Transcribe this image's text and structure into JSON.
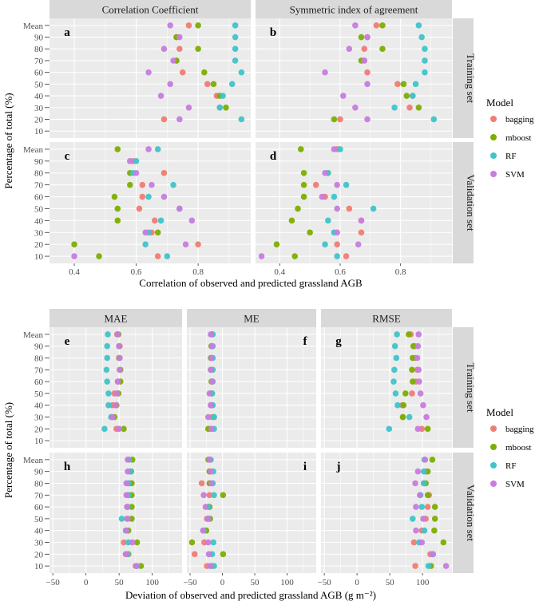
{
  "colors": {
    "bagging": "#F07C73",
    "mboost": "#7CAE00",
    "RF": "#3FC4C9",
    "SVM": "#C77CDE"
  },
  "legend": {
    "title": "Model",
    "items": [
      "bagging",
      "mboost",
      "RF",
      "SVM"
    ]
  },
  "chart_data": [
    {
      "type": "scatter",
      "name": "correlation",
      "xlabel": "Correlation of observed and predicted grassland AGB",
      "ylabel": "Percentage of total (%)",
      "xlim": [
        0.32,
        0.97
      ],
      "xticks": [
        0.4,
        0.6,
        0.8
      ],
      "xtick_labels": [
        "0.4",
        "0.6",
        "0.8"
      ],
      "categories": [
        "10",
        "20",
        "30",
        "40",
        "50",
        "60",
        "70",
        "80",
        "90",
        "Mean"
      ],
      "columns": [
        "Correlation Coefficient",
        "Symmetric index of agreement"
      ],
      "rows": [
        "Training set",
        "Validation set"
      ],
      "panels": [
        {
          "letter": "a",
          "col": 0,
          "row": 0,
          "letter_pos": "top-left",
          "series": [
            {
              "name": "bagging",
              "values": [
                null,
                0.69,
                0.87,
                0.86,
                0.83,
                0.75,
                0.73,
                0.74,
                0.73,
                0.77
              ]
            },
            {
              "name": "mboost",
              "values": [
                null,
                null,
                0.89,
                0.87,
                0.85,
                0.82,
                0.73,
                0.8,
                0.73,
                0.8
              ]
            },
            {
              "name": "RF",
              "values": [
                null,
                0.94,
                0.87,
                0.88,
                0.91,
                0.94,
                0.92,
                0.92,
                0.92,
                0.92
              ]
            },
            {
              "name": "SVM",
              "values": [
                null,
                0.74,
                0.77,
                0.68,
                0.71,
                0.64,
                0.72,
                0.69,
                0.74,
                0.71
              ]
            }
          ]
        },
        {
          "letter": "b",
          "col": 1,
          "row": 0,
          "letter_pos": "top-left",
          "series": [
            {
              "name": "bagging",
              "values": [
                null,
                0.6,
                0.83,
                0.84,
                0.79,
                0.69,
                0.68,
                0.68,
                0.69,
                0.72
              ]
            },
            {
              "name": "mboost",
              "values": [
                null,
                0.58,
                0.86,
                0.82,
                0.81,
                null,
                0.67,
                0.74,
                0.67,
                0.74
              ]
            },
            {
              "name": "RF",
              "values": [
                null,
                0.91,
                0.78,
                0.84,
                0.85,
                0.88,
                0.88,
                0.88,
                0.87,
                0.86
              ]
            },
            {
              "name": "SVM",
              "values": [
                null,
                0.69,
                0.65,
                0.61,
                0.69,
                0.55,
                0.68,
                0.63,
                0.69,
                0.65
              ]
            }
          ]
        },
        {
          "letter": "c",
          "col": 0,
          "row": 1,
          "letter_pos": "top-left",
          "series": [
            {
              "name": "bagging",
              "values": [
                0.67,
                0.8,
                0.65,
                0.66,
                0.61,
                0.62,
                0.62,
                0.69,
                0.59,
                null
              ]
            },
            {
              "name": "mboost",
              "values": [
                0.48,
                0.4,
                0.67,
                0.54,
                0.54,
                0.53,
                0.58,
                0.58,
                null,
                0.54
              ]
            },
            {
              "name": "RF",
              "values": [
                0.7,
                0.63,
                0.64,
                0.68,
                0.74,
                0.64,
                0.72,
                0.59,
                0.6,
                0.67
              ]
            },
            {
              "name": "SVM",
              "values": [
                0.4,
                0.76,
                0.63,
                0.78,
                0.74,
                0.69,
                0.65,
                0.6,
                0.58,
                0.64
              ]
            }
          ]
        },
        {
          "letter": "d",
          "col": 1,
          "row": 1,
          "letter_pos": "top-left",
          "series": [
            {
              "name": "bagging",
              "values": [
                0.62,
                0.59,
                0.67,
                0.67,
                0.63,
                0.55,
                0.52,
                0.56,
                null,
                0.59
              ]
            },
            {
              "name": "mboost",
              "values": [
                0.45,
                0.39,
                0.5,
                0.44,
                0.46,
                0.48,
                0.48,
                0.48,
                null,
                0.47
              ]
            },
            {
              "name": "RF",
              "values": [
                0.59,
                0.55,
                0.58,
                0.56,
                0.71,
                0.58,
                0.62,
                0.56,
                null,
                0.6
              ]
            },
            {
              "name": "SVM",
              "values": [
                0.34,
                0.66,
                0.59,
                0.67,
                0.59,
                0.54,
                0.59,
                0.55,
                null,
                0.58
              ]
            }
          ]
        }
      ]
    },
    {
      "type": "scatter",
      "name": "deviation",
      "xlabel": "Deviation of observed and predicted grassland AGB (g m⁻²)",
      "ylabel": "Percentage of total (%)",
      "xlim": [
        -55,
        145
      ],
      "xticks": [
        -50,
        0,
        50,
        100
      ],
      "xtick_labels": [
        "−50",
        "0",
        "50",
        "100"
      ],
      "categories": [
        "10",
        "20",
        "30",
        "40",
        "50",
        "60",
        "70",
        "80",
        "90",
        "Mean"
      ],
      "columns": [
        "MAE",
        "ME",
        "RMSE"
      ],
      "rows": [
        "Training set",
        "Validation set"
      ],
      "panels": [
        {
          "letter": "e",
          "col": 0,
          "row": 0,
          "letter_pos": "top-left",
          "series": [
            {
              "name": "bagging",
              "values": [
                null,
                46,
                39,
                40,
                43,
                48,
                51,
                50,
                51,
                47
              ]
            },
            {
              "name": "mboost",
              "values": [
                null,
                57,
                43,
                46,
                49,
                52,
                52,
                50,
                50,
                49
              ]
            },
            {
              "name": "RF",
              "values": [
                null,
                28,
                38,
                34,
                34,
                32,
                31,
                32,
                32,
                33
              ]
            },
            {
              "name": "SVM",
              "values": [
                null,
                50,
                40,
                45,
                47,
                48,
                51,
                51,
                50,
                48
              ]
            }
          ]
        },
        {
          "letter": "f",
          "col": 1,
          "row": 0,
          "letter_pos": "top-right",
          "series": [
            {
              "name": "bagging",
              "values": [
                null,
                -18,
                -16,
                -18,
                -16,
                -16,
                -16,
                -17,
                -17,
                -16
              ]
            },
            {
              "name": "mboost",
              "values": [
                null,
                -22,
                -13,
                -16,
                -17,
                -17,
                -18,
                -18,
                -17,
                -16
              ]
            },
            {
              "name": "RF",
              "values": [
                null,
                -13,
                -13,
                -15,
                -16,
                -15,
                -15,
                -15,
                -15,
                -15
              ]
            },
            {
              "name": "SVM",
              "values": [
                null,
                -17,
                -22,
                -18,
                -20,
                -16,
                -18,
                -17,
                -16,
                -18
              ]
            }
          ]
        },
        {
          "letter": "g",
          "col": 2,
          "row": 0,
          "letter_pos": "top-left",
          "series": [
            {
              "name": "bagging",
              "values": [
                null,
                99,
                70,
                69,
                84,
                90,
                92,
                89,
                88,
                82
              ]
            },
            {
              "name": "mboost",
              "values": [
                null,
                108,
                70,
                71,
                74,
                85,
                84,
                85,
                86,
                79
              ]
            },
            {
              "name": "RF",
              "values": [
                null,
                49,
                80,
                62,
                59,
                56,
                57,
                60,
                58,
                61
              ]
            },
            {
              "name": "SVM",
              "values": [
                null,
                93,
                106,
                101,
                97,
                95,
                94,
                92,
                93,
                94
              ]
            }
          ]
        },
        {
          "letter": "h",
          "col": 0,
          "row": 1,
          "letter_pos": "top-left",
          "series": [
            {
              "name": "bagging",
              "values": [
                75,
                60,
                57,
                61,
                62,
                62,
                64,
                66,
                68,
                null
              ]
            },
            {
              "name": "mboost",
              "values": [
                83,
                64,
                77,
                64,
                69,
                69,
                69,
                69,
                68,
                70
              ]
            },
            {
              "name": "RF",
              "values": [
                77,
                63,
                64,
                60,
                54,
                63,
                64,
                64,
                67,
                65
              ]
            },
            {
              "name": "SVM",
              "values": [
                76,
                61,
                70,
                61,
                63,
                62,
                61,
                61,
                63,
                63
              ]
            }
          ]
        },
        {
          "letter": "i",
          "col": 1,
          "row": 1,
          "letter_pos": "top-right",
          "series": [
            {
              "name": "bagging",
              "values": [
                -24,
                -43,
                -28,
                -25,
                -24,
                -20,
                -20,
                -32,
                -20,
                -22
              ]
            },
            {
              "name": "mboost",
              "values": [
                -17,
                1,
                -47,
                -25,
                -19,
                -20,
                1,
                -20,
                -20,
                -21
              ]
            },
            {
              "name": "RF",
              "values": [
                -13,
                -16,
                -14,
                -29,
                -22,
                -22,
                -13,
                -15,
                -14,
                -18
              ]
            },
            {
              "name": "SVM",
              "values": [
                -19,
                -21,
                -22,
                -30,
                -22,
                -26,
                -29,
                -17,
                -18,
                -20
              ]
            }
          ]
        },
        {
          "letter": "j",
          "col": 2,
          "row": 1,
          "letter_pos": "top-left",
          "series": [
            {
              "name": "bagging",
              "values": [
                89,
                112,
                87,
                99,
                105,
                108,
                110,
                102,
                105,
                null
              ]
            },
            {
              "name": "mboost",
              "values": [
                113,
                116,
                132,
                118,
                119,
                119,
                108,
                105,
                108,
                115
              ]
            },
            {
              "name": "RF",
              "values": [
                109,
                116,
                95,
                103,
                85,
                99,
                97,
                102,
                102,
                103
              ]
            },
            {
              "name": "SVM",
              "values": [
                136,
                115,
                99,
                90,
                101,
                90,
                96,
                89,
                93,
                104
              ]
            }
          ]
        }
      ]
    }
  ]
}
